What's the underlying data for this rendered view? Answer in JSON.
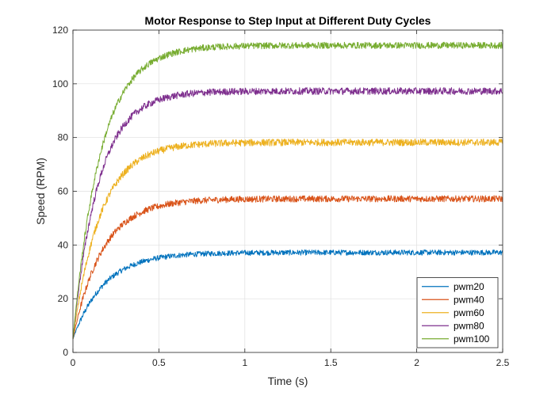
{
  "chart_data": {
    "type": "line",
    "title": "Motor Response to Step Input at Different Duty Cycles",
    "xlabel": "Time (s)",
    "ylabel": "Speed (RPM)",
    "xlim": [
      0,
      2.5
    ],
    "ylim": [
      0,
      120
    ],
    "xticks": [
      0,
      0.5,
      1,
      1.5,
      2,
      2.5
    ],
    "xtick_labels": [
      "0",
      "0.5",
      "1",
      "1.5",
      "2",
      "2.5"
    ],
    "yticks": [
      0,
      20,
      40,
      60,
      80,
      100,
      120
    ],
    "ytick_labels": [
      "0",
      "20",
      "40",
      "60",
      "80",
      "100",
      "120"
    ],
    "grid": true,
    "legend_position": "bottom-right",
    "series": [
      {
        "name": "pwm20",
        "color": "#0072BD",
        "start": 5,
        "steady": 37.2,
        "tau": 0.18,
        "noise": 1.0,
        "samples": {
          "x": [
            0,
            0.1,
            0.2,
            0.3,
            0.4,
            0.5,
            0.75,
            1,
            1.5,
            2,
            2.5
          ],
          "y": [
            5,
            16,
            23,
            28,
            32,
            34.5,
            36.5,
            37,
            37.2,
            37.2,
            37.2
          ]
        }
      },
      {
        "name": "pwm40",
        "color": "#D95319",
        "start": 5,
        "steady": 57.2,
        "tau": 0.17,
        "noise": 1.2,
        "samples": {
          "x": [
            0,
            0.1,
            0.2,
            0.3,
            0.4,
            0.5,
            0.75,
            1,
            1.5,
            2,
            2.5
          ],
          "y": [
            5,
            27,
            38,
            46,
            51,
            54.5,
            56.5,
            57,
            57.2,
            57.2,
            57.2
          ]
        }
      },
      {
        "name": "pwm60",
        "color": "#EDB120",
        "start": 5,
        "steady": 78.2,
        "tau": 0.16,
        "noise": 1.3,
        "samples": {
          "x": [
            0,
            0.1,
            0.2,
            0.3,
            0.4,
            0.5,
            0.75,
            1,
            1.5,
            2,
            2.5
          ],
          "y": [
            5,
            38,
            56,
            66,
            72,
            75,
            77.5,
            78,
            78.2,
            78.2,
            78.2
          ]
        }
      },
      {
        "name": "pwm80",
        "color": "#7E2F8E",
        "start": 5,
        "steady": 97.3,
        "tau": 0.15,
        "noise": 1.3,
        "samples": {
          "x": [
            0,
            0.1,
            0.2,
            0.3,
            0.4,
            0.5,
            0.75,
            1,
            1.5,
            2,
            2.5
          ],
          "y": [
            5,
            52,
            74,
            85,
            91,
            94,
            96.5,
            97,
            97.3,
            97.3,
            97.3
          ]
        }
      },
      {
        "name": "pwm100",
        "color": "#77AC30",
        "start": 5,
        "steady": 114.3,
        "tau": 0.16,
        "noise": 1.2,
        "samples": {
          "x": [
            0,
            0.1,
            0.2,
            0.3,
            0.4,
            0.5,
            0.75,
            1,
            1.5,
            2,
            2.5
          ],
          "y": [
            5,
            60,
            86,
            99,
            106,
            109.5,
            111.5,
            112.5,
            113.5,
            114,
            114.3
          ]
        }
      }
    ]
  }
}
